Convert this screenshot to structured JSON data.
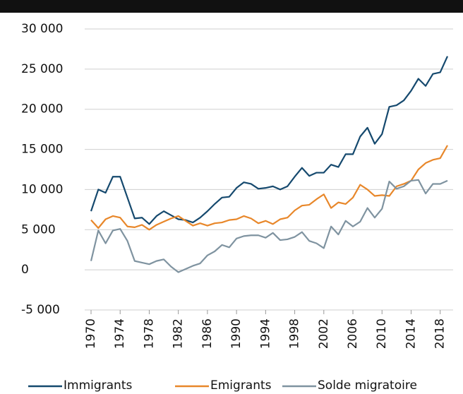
{
  "chart_data": {
    "type": "line",
    "x": [
      1970,
      1971,
      1972,
      1973,
      1974,
      1975,
      1976,
      1977,
      1978,
      1979,
      1980,
      1981,
      1982,
      1983,
      1984,
      1985,
      1986,
      1987,
      1988,
      1989,
      1990,
      1991,
      1992,
      1993,
      1994,
      1995,
      1996,
      1997,
      1998,
      1999,
      2000,
      2001,
      2002,
      2003,
      2004,
      2005,
      2006,
      2007,
      2008,
      2009,
      2010,
      2011,
      2012,
      2013,
      2014,
      2015,
      2016,
      2017,
      2018,
      2019
    ],
    "series": [
      {
        "name": "Immigrants",
        "color": "#15496e",
        "values": [
          7300,
          10000,
          9600,
          11600,
          11600,
          9000,
          6400,
          6500,
          5700,
          6700,
          7300,
          6800,
          6300,
          6200,
          5900,
          6500,
          7300,
          8200,
          9000,
          9100,
          10200,
          10900,
          10700,
          10100,
          10200,
          10400,
          10000,
          10400,
          11600,
          12700,
          11700,
          12100,
          12100,
          13100,
          12800,
          14400,
          14400,
          16600,
          17700,
          15700,
          16900,
          20300,
          20500,
          21100,
          22300,
          23800,
          22900,
          24400,
          24600,
          26600
        ]
      },
      {
        "name": "Emigrants",
        "color": "#e8872a",
        "values": [
          6200,
          5200,
          6300,
          6700,
          6500,
          5400,
          5300,
          5600,
          5000,
          5600,
          6000,
          6400,
          6700,
          6100,
          5500,
          5800,
          5500,
          5800,
          5900,
          6200,
          6300,
          6700,
          6400,
          5800,
          6100,
          5700,
          6300,
          6500,
          7400,
          8000,
          8100,
          8800,
          9400,
          7700,
          8400,
          8200,
          9000,
          10600,
          10000,
          9200,
          9300,
          9200,
          10400,
          10700,
          11100,
          12500,
          13300,
          13700,
          13900,
          15500
        ]
      },
      {
        "name": "Solde migratoire",
        "color": "#7f93a0",
        "values": [
          1100,
          4900,
          3300,
          4900,
          5100,
          3600,
          1100,
          900,
          700,
          1100,
          1300,
          400,
          -300,
          100,
          500,
          800,
          1800,
          2300,
          3100,
          2800,
          3900,
          4200,
          4300,
          4300,
          4000,
          4600,
          3700,
          3800,
          4100,
          4700,
          3600,
          3300,
          2700,
          5400,
          4400,
          6100,
          5400,
          6000,
          7700,
          6500,
          7600,
          11000,
          10100,
          10400,
          11100,
          11200,
          9500,
          10700,
          10700,
          11100
        ]
      }
    ],
    "xlim": [
      1970,
      2019
    ],
    "xticks": [
      1970,
      1974,
      1978,
      1982,
      1986,
      1990,
      1994,
      1998,
      2002,
      2006,
      2010,
      2014,
      2018
    ],
    "ylim": [
      -5000,
      30000
    ],
    "yticks": [
      {
        "value": -5000,
        "label": "-5 000"
      },
      0,
      {
        "value": 5000,
        "label": "5 000"
      },
      {
        "value": 10000,
        "label": "10 000"
      },
      {
        "value": 15000,
        "label": "15 000"
      },
      {
        "value": 20000,
        "label": "20 000"
      },
      {
        "value": 25000,
        "label": "25 000"
      },
      {
        "value": 30000,
        "label": "30 000"
      }
    ],
    "grid": true
  }
}
